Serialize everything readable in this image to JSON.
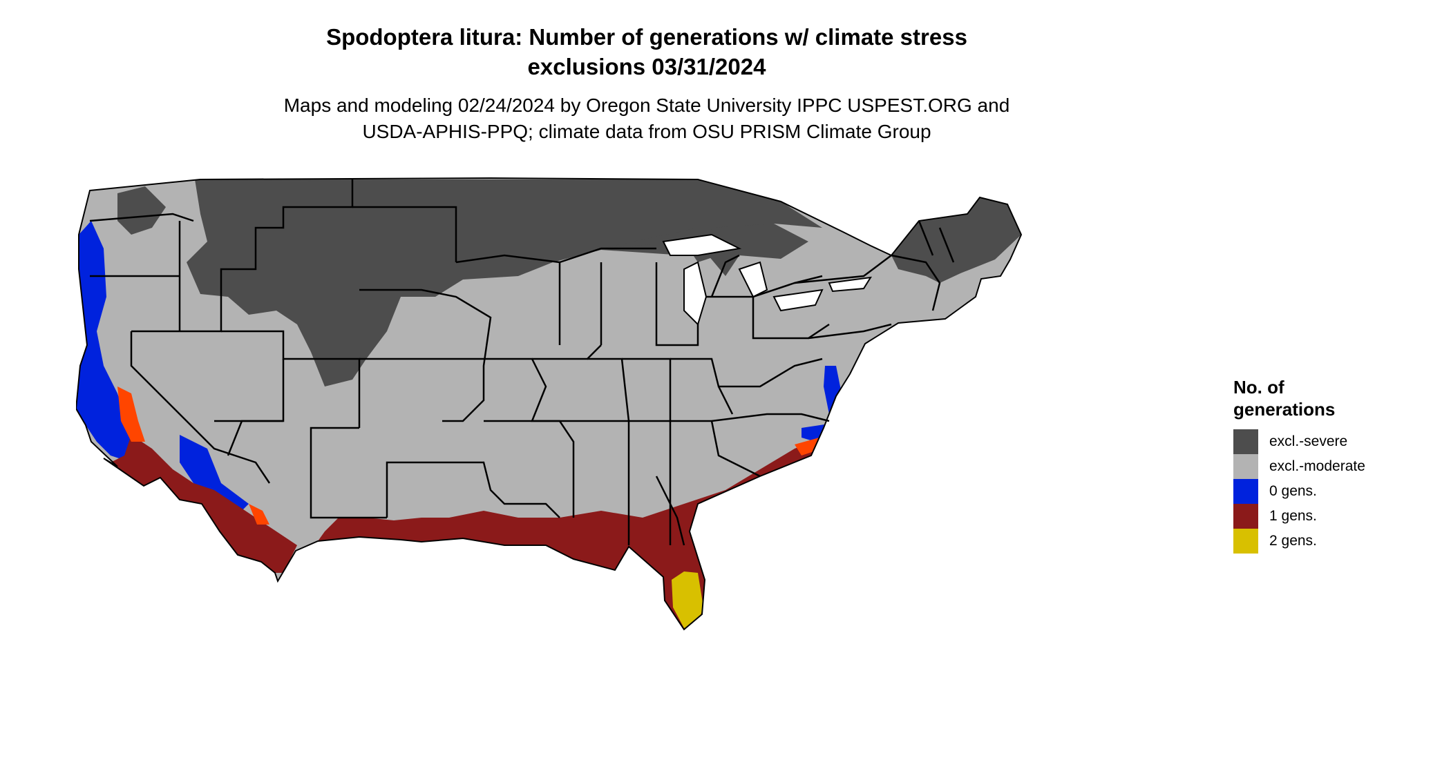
{
  "title": {
    "line1": "Spodoptera litura: Number of generations w/ climate stress",
    "line2": "exclusions 03/31/2024"
  },
  "subtitle": {
    "line1": "Maps and modeling 02/24/2024 by Oregon State University IPPC USPEST.ORG and",
    "line2": "USDA-APHIS-PPQ; climate data from OSU PRISM Climate Group"
  },
  "legend": {
    "title_line1": "No. of",
    "title_line2": "generations",
    "items": [
      {
        "label": "excl.-severe",
        "color": "#4d4d4d"
      },
      {
        "label": "excl.-moderate",
        "color": "#b3b3b3"
      },
      {
        "label": "0 gens.",
        "color": "#0022dd"
      },
      {
        "label": "1 gens.",
        "color": "#8b1a1a"
      },
      {
        "label": "2 gens.",
        "color": "#d8c000"
      }
    ]
  },
  "colors": {
    "secondary_orange": "#ff4500",
    "state_border": "#000000",
    "background": "#ffffff"
  }
}
